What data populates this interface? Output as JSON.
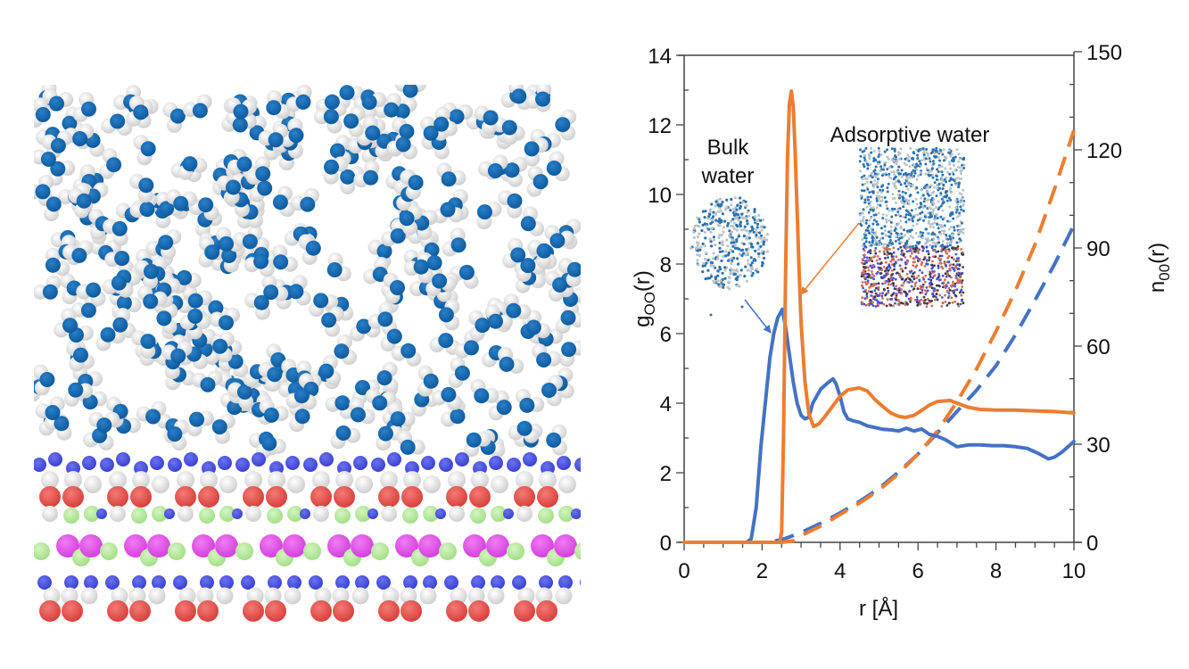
{
  "left_panel": {
    "description": "Molecular dynamics snapshot: water layer above mineral substrate",
    "colors": {
      "oxygen_water": "#1566ad",
      "hydrogen": "#e6e6e6",
      "substrate_blue": "#4a52e0",
      "substrate_red": "#e8504c",
      "substrate_green": "#b8eaa0",
      "substrate_magenta": "#e855ee"
    }
  },
  "chart_data": {
    "type": "line",
    "title": "",
    "xlabel": "r [Å]",
    "ylabel_left": "g",
    "ylabel_left_sub": "OO",
    "ylabel_left_suffix": "(r)",
    "ylabel_right": "n",
    "ylabel_right_sub": "00",
    "ylabel_right_suffix": "(r)",
    "xlim": [
      0,
      10
    ],
    "ylim_left": [
      0,
      14
    ],
    "ylim_right": [
      0,
      150
    ],
    "x_ticks": [
      "0",
      "2",
      "4",
      "6",
      "8",
      "10"
    ],
    "y_left_ticks": [
      "0",
      "2",
      "4",
      "6",
      "8",
      "10",
      "12",
      "14"
    ],
    "y_right_ticks": [
      "0",
      "30",
      "60",
      "90",
      "120",
      "150"
    ],
    "grid": false,
    "annotations": {
      "bulk_label_line1": "Bulk",
      "bulk_label_line2": "water",
      "adsorptive_label": "Adsorptive water"
    },
    "colors": {
      "bulk": "#4472c4",
      "adsorptive": "#ed7d31"
    },
    "series": [
      {
        "name": "Bulk water g_OO(r)",
        "axis": "left",
        "style": "solid",
        "color": "#4472c4",
        "x": [
          0,
          1.6,
          1.72,
          1.85,
          1.97,
          2.1,
          2.2,
          2.3,
          2.4,
          2.52,
          2.6,
          2.7,
          2.8,
          2.9,
          3.0,
          3.1,
          3.2,
          3.3,
          3.4,
          3.5,
          3.6,
          3.7,
          3.82,
          3.9,
          4.0,
          4.1,
          4.2,
          4.35,
          4.5,
          4.7,
          4.9,
          5.1,
          5.33,
          5.5,
          5.7,
          5.9,
          6.09,
          6.3,
          6.5,
          6.7,
          7.0,
          7.3,
          7.6,
          7.9,
          8.2,
          8.5,
          8.8,
          9.1,
          9.34,
          9.5,
          9.7,
          10.0
        ],
        "y": [
          0,
          0,
          0.1,
          1.0,
          2.77,
          4.2,
          5.3,
          6.0,
          6.45,
          6.7,
          6.2,
          5.4,
          4.6,
          4.0,
          3.65,
          3.55,
          3.6,
          4.0,
          4.2,
          4.4,
          4.5,
          4.6,
          4.7,
          4.55,
          4.2,
          3.75,
          3.55,
          3.49,
          3.45,
          3.35,
          3.3,
          3.25,
          3.23,
          3.2,
          3.28,
          3.2,
          3.26,
          3.1,
          3.05,
          2.95,
          2.75,
          2.8,
          2.8,
          2.78,
          2.78,
          2.75,
          2.7,
          2.55,
          2.4,
          2.45,
          2.6,
          2.9
        ]
      },
      {
        "name": "Adsorptive water g_OO(r)",
        "axis": "left",
        "style": "solid",
        "color": "#ed7d31",
        "x": [
          0,
          2.45,
          2.5,
          2.55,
          2.6,
          2.65,
          2.7,
          2.75,
          2.8,
          2.85,
          2.9,
          2.95,
          3.0,
          3.1,
          3.2,
          3.32,
          3.45,
          3.6,
          3.8,
          4.0,
          4.2,
          4.49,
          4.7,
          4.9,
          5.1,
          5.3,
          5.5,
          5.68,
          5.9,
          6.1,
          6.3,
          6.5,
          6.82,
          7.0,
          7.3,
          7.6,
          8.0,
          8.5,
          9.0,
          9.5,
          10.0
        ],
        "y": [
          0,
          0,
          0.3,
          3.0,
          7.5,
          11.0,
          12.6,
          12.97,
          12.5,
          11.2,
          9.5,
          7.8,
          6.3,
          4.6,
          3.7,
          3.33,
          3.4,
          3.6,
          3.9,
          4.2,
          4.38,
          4.44,
          4.35,
          4.1,
          3.9,
          3.72,
          3.62,
          3.59,
          3.65,
          3.8,
          3.95,
          4.05,
          4.08,
          4.0,
          3.88,
          3.82,
          3.8,
          3.8,
          3.78,
          3.76,
          3.72
        ]
      },
      {
        "name": "Bulk water n_OO(r)",
        "axis": "right",
        "style": "dashed",
        "color": "#4472c4",
        "x": [
          0,
          2.2,
          2.6,
          3.0,
          3.5,
          4.0,
          4.5,
          5.0,
          5.5,
          6.0,
          6.5,
          7.0,
          7.5,
          8.0,
          8.5,
          9.0,
          9.5,
          10.0
        ],
        "y": [
          0,
          0,
          1.2,
          3.0,
          5.8,
          9.0,
          12.5,
          16.5,
          21.5,
          27.0,
          33.5,
          40.0,
          46.5,
          54.0,
          63.5,
          74.0,
          85.0,
          97.0
        ]
      },
      {
        "name": "Adsorptive water n_OO(r)",
        "axis": "right",
        "style": "dashed",
        "color": "#ed7d31",
        "x": [
          0,
          2.5,
          2.8,
          3.0,
          3.5,
          4.0,
          4.5,
          5.0,
          5.5,
          6.0,
          6.5,
          7.0,
          7.5,
          8.0,
          8.5,
          9.0,
          9.5,
          10.0
        ],
        "y": [
          0,
          0,
          0.5,
          2.0,
          5.0,
          8.5,
          12.0,
          16.0,
          21.0,
          27.0,
          34.0,
          43.0,
          53.0,
          64.5,
          77.0,
          91.0,
          108.0,
          126.0
        ]
      }
    ]
  }
}
